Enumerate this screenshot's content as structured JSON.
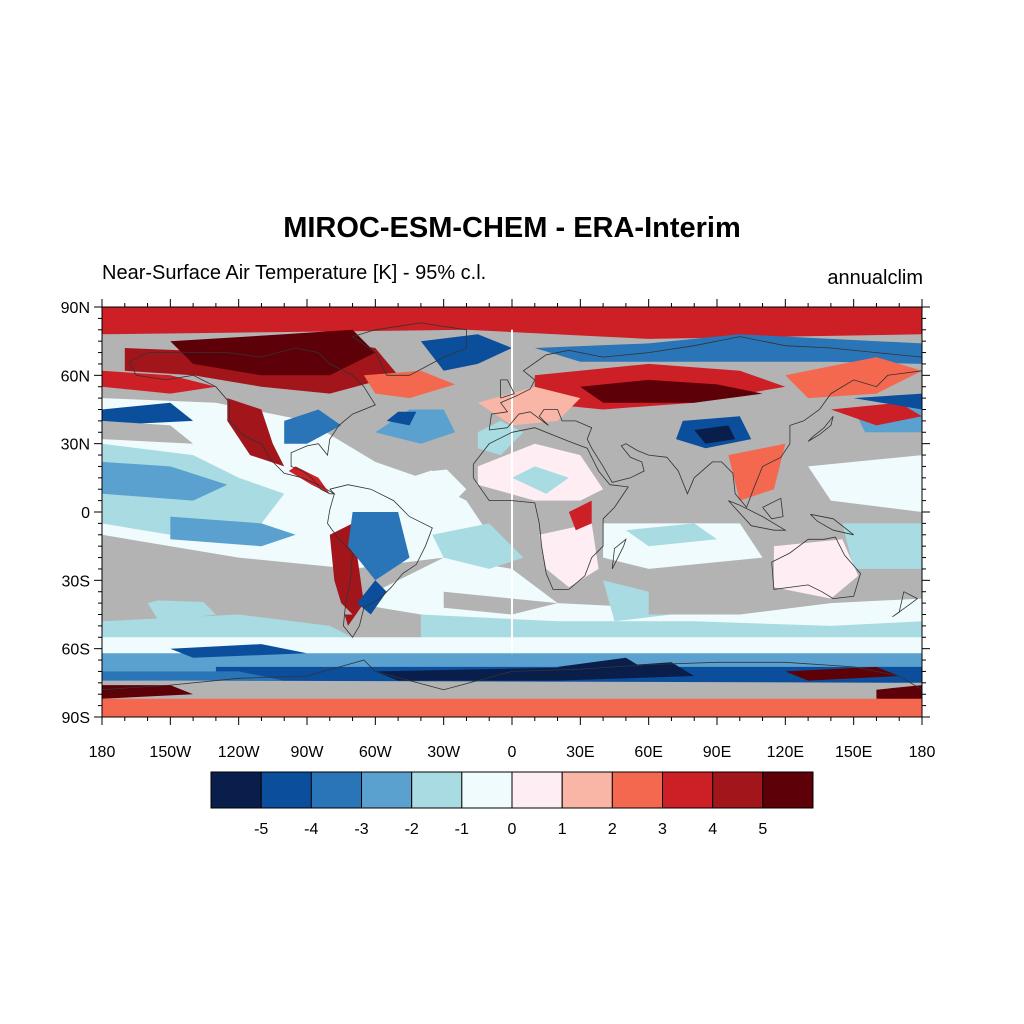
{
  "title": "MIROC-ESM-CHEM - ERA-Interim",
  "subtitle_left": "Near-Surface Air Temperature [K] - 95% c.l.",
  "subtitle_right": "annualclim",
  "map": {
    "lon_range": [
      -180,
      180
    ],
    "lat_range": [
      -90,
      90
    ],
    "lat_labels": [
      "90N",
      "60N",
      "30N",
      "0",
      "30S",
      "60S",
      "90S"
    ],
    "lat_values": [
      90,
      60,
      30,
      0,
      -30,
      -60,
      -90
    ],
    "lon_labels": [
      "180",
      "150W",
      "120W",
      "90W",
      "60W",
      "30W",
      "0",
      "30E",
      "60E",
      "90E",
      "120E",
      "150E",
      "180"
    ],
    "lon_values": [
      -180,
      -150,
      -120,
      -90,
      -60,
      -30,
      0,
      30,
      60,
      90,
      120,
      150,
      180
    ],
    "insignificant_color": "#b3b3b3"
  },
  "colorbar": {
    "colors": [
      "#0a1e4b",
      "#0b4f9c",
      "#2a74b8",
      "#5ba1cf",
      "#a9dbe2",
      "#effbfc",
      "#feeef3",
      "#f9b5a5",
      "#f3684f",
      "#cc1f26",
      "#a2151b",
      "#5d0008"
    ],
    "labels": [
      "-5",
      "-4",
      "-3",
      "-2",
      "-1",
      "0",
      "1",
      "2",
      "3",
      "4",
      "5"
    ]
  }
}
